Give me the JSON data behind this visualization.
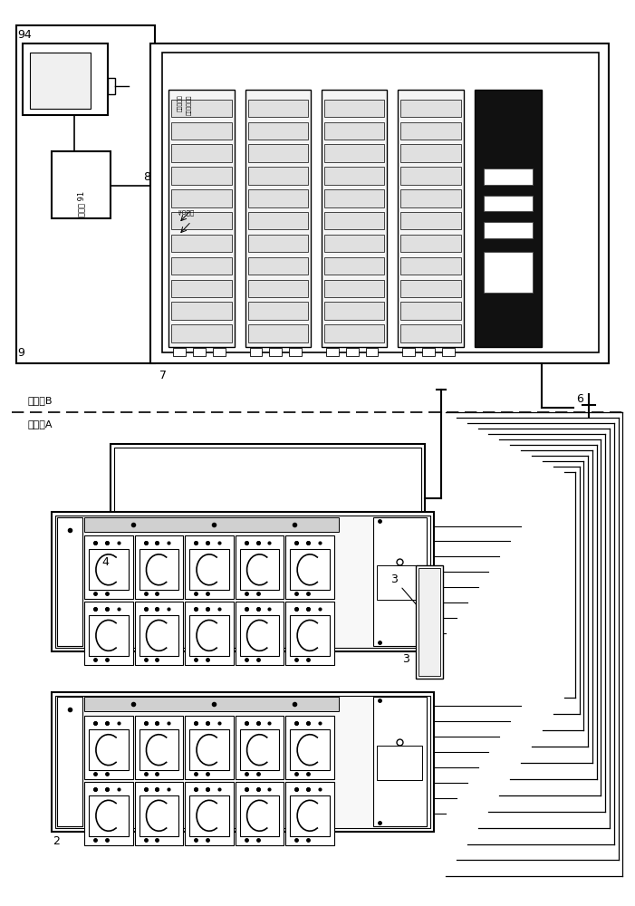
{
  "bg_color": "#ffffff",
  "lc": "#000000",
  "text_B": "控制室B",
  "text_A": "配电室A",
  "text_91": "交换机 91",
  "text_plc1": "配电管理模块",
  "text_plc2": "主控制模块",
  "text_io": "I/O模块",
  "label_9": "9",
  "label_94": "94",
  "label_8": "8",
  "label_7": "7",
  "label_6": "6",
  "label_2": "2",
  "label_3": "3",
  "label_4": "4",
  "n_cable_lines": 13,
  "n_stripes": 11,
  "n_breaker_cols": 6
}
